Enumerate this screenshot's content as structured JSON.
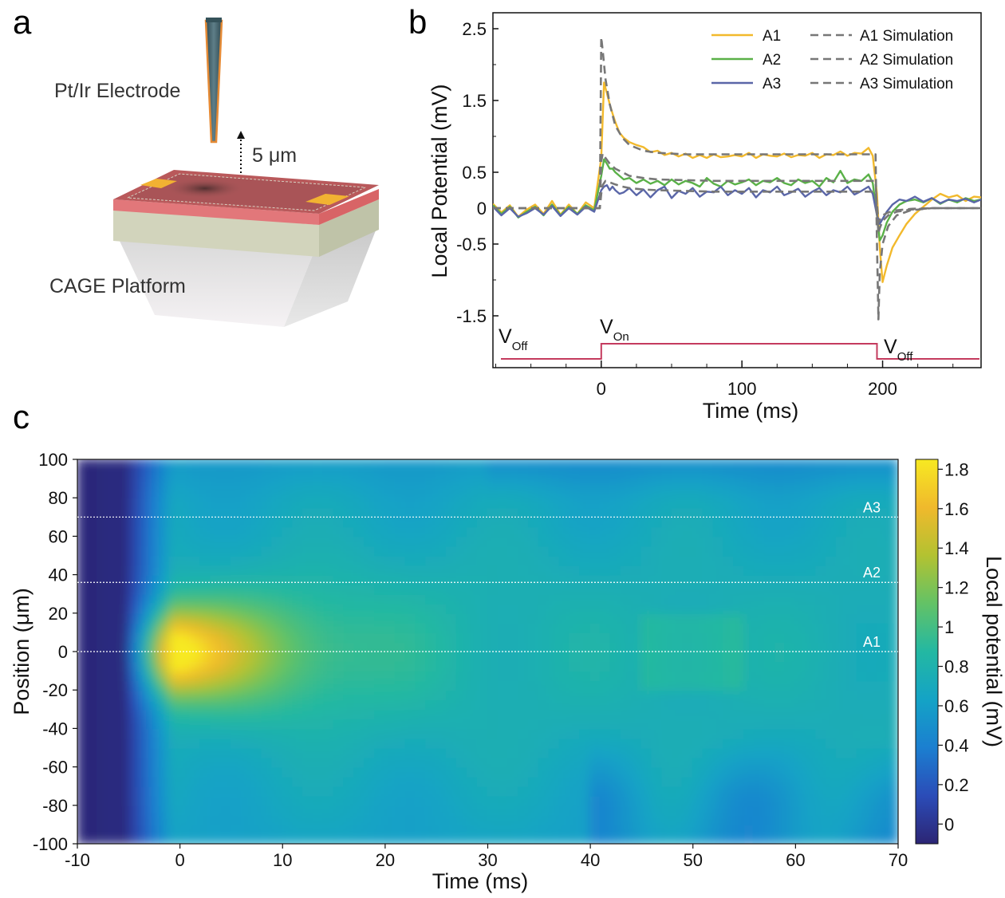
{
  "panels": {
    "a": {
      "letter": "a",
      "electrode_label": "Pt/Ir Electrode",
      "distance_label": "5 μm",
      "platform_label": "CAGE Platform",
      "colors": {
        "chip_top": "#b9595b",
        "chip_pink": "#e2777a",
        "chip_base": "#d2d4bc",
        "pad": "#f2b232",
        "electrode": "#3e5f68",
        "electrode_edge": "#e58a35"
      }
    },
    "b": {
      "letter": "b"
    },
    "c": {
      "letter": "c"
    }
  },
  "chart_data": [
    {
      "id": "panel-b",
      "type": "line",
      "xlabel": "Time (ms)",
      "ylabel": "Local Potential (mV)",
      "xlim": [
        -77,
        270
      ],
      "ylim": [
        -1.9,
        2.6
      ],
      "x_ticks": [
        0,
        100,
        200
      ],
      "x_minor_step": 25,
      "y_ticks": [
        {
          "value": 2.5,
          "label": "2.5"
        },
        {
          "value": 1.5,
          "label": "1.5"
        },
        {
          "value": 0.5,
          "label": "0.5"
        },
        {
          "value": 0,
          "label": "0"
        },
        {
          "value": -0.5,
          "label": "-0.5"
        },
        {
          "value": -1.5,
          "label": "-1.5"
        }
      ],
      "legend_position": "top-right",
      "series": [
        {
          "name": "A1",
          "color": "#f2b92c",
          "style": "solid",
          "x": [
            -77,
            -71,
            -65,
            -59,
            -53,
            -47,
            -41,
            -35,
            -29,
            -23,
            -17,
            -11,
            -5,
            0,
            2,
            4,
            6,
            8,
            10,
            13,
            16,
            20,
            25,
            30,
            35,
            40,
            45,
            50,
            55,
            60,
            65,
            70,
            75,
            80,
            85,
            90,
            95,
            100,
            105,
            110,
            115,
            120,
            125,
            130,
            135,
            140,
            145,
            150,
            155,
            160,
            165,
            170,
            175,
            180,
            185,
            190,
            193,
            196,
            198,
            200,
            203,
            207,
            212,
            217,
            223,
            229,
            235,
            241,
            247,
            253,
            259,
            265,
            270
          ],
          "y": [
            0.06,
            -0.06,
            0.04,
            -0.12,
            -0.02,
            0.05,
            -0.08,
            0.1,
            -0.09,
            0.05,
            -0.08,
            0.08,
            0.0,
            0.7,
            1.75,
            1.6,
            1.45,
            1.32,
            1.2,
            1.05,
            0.98,
            0.92,
            0.88,
            0.85,
            0.78,
            0.8,
            0.74,
            0.77,
            0.72,
            0.76,
            0.7,
            0.74,
            0.7,
            0.75,
            0.71,
            0.72,
            0.74,
            0.72,
            0.77,
            0.7,
            0.75,
            0.73,
            0.72,
            0.76,
            0.71,
            0.74,
            0.73,
            0.77,
            0.7,
            0.75,
            0.74,
            0.79,
            0.73,
            0.77,
            0.76,
            0.84,
            0.73,
            0.2,
            -0.55,
            -1.03,
            -0.8,
            -0.55,
            -0.38,
            -0.22,
            -0.08,
            0.02,
            0.12,
            0.2,
            0.15,
            0.18,
            0.1,
            0.16,
            0.15
          ]
        },
        {
          "name": "A2",
          "color": "#5ab148",
          "style": "solid",
          "x": [
            -77,
            -71,
            -65,
            -59,
            -53,
            -47,
            -41,
            -35,
            -29,
            -23,
            -17,
            -11,
            -5,
            0,
            2,
            4,
            6,
            8,
            10,
            13,
            16,
            20,
            25,
            30,
            35,
            40,
            45,
            50,
            55,
            60,
            65,
            70,
            75,
            80,
            85,
            90,
            95,
            100,
            105,
            110,
            115,
            120,
            125,
            130,
            135,
            140,
            145,
            150,
            155,
            160,
            165,
            170,
            175,
            180,
            185,
            190,
            193,
            196,
            198,
            200,
            203,
            207,
            212,
            217,
            223,
            229,
            235,
            241,
            247,
            253,
            259,
            265,
            270
          ],
          "y": [
            0.04,
            -0.08,
            0.02,
            -0.13,
            -0.05,
            0.02,
            -0.1,
            0.05,
            -0.1,
            0.02,
            -0.08,
            0.04,
            -0.03,
            0.45,
            0.68,
            0.62,
            0.55,
            0.55,
            0.5,
            0.45,
            0.4,
            0.42,
            0.35,
            0.4,
            0.34,
            0.38,
            0.32,
            0.4,
            0.33,
            0.38,
            0.35,
            0.3,
            0.42,
            0.34,
            0.3,
            0.38,
            0.33,
            0.36,
            0.4,
            0.32,
            0.38,
            0.36,
            0.42,
            0.35,
            0.32,
            0.4,
            0.35,
            0.38,
            0.3,
            0.42,
            0.36,
            0.52,
            0.35,
            0.4,
            0.38,
            0.47,
            0.35,
            -0.1,
            -0.45,
            -0.38,
            -0.2,
            -0.05,
            0.05,
            0.1,
            0.12,
            0.08,
            0.14,
            0.06,
            0.12,
            0.08,
            0.14,
            0.1,
            0.12
          ]
        },
        {
          "name": "A3",
          "color": "#5a66a8",
          "style": "solid",
          "x": [
            -77,
            -71,
            -65,
            -59,
            -53,
            -47,
            -41,
            -35,
            -29,
            -23,
            -17,
            -11,
            -5,
            0,
            2,
            4,
            6,
            8,
            10,
            13,
            16,
            20,
            25,
            30,
            35,
            40,
            45,
            50,
            55,
            60,
            65,
            70,
            75,
            80,
            85,
            90,
            95,
            100,
            105,
            110,
            115,
            120,
            125,
            130,
            135,
            140,
            145,
            150,
            155,
            160,
            165,
            170,
            175,
            180,
            185,
            190,
            193,
            196,
            198,
            200,
            203,
            207,
            212,
            217,
            223,
            229,
            235,
            241,
            247,
            253,
            259,
            265,
            270
          ],
          "y": [
            0.02,
            -0.1,
            0.0,
            -0.12,
            -0.07,
            0.0,
            -0.09,
            0.03,
            -0.11,
            0.0,
            -0.09,
            0.02,
            -0.05,
            0.25,
            0.3,
            0.32,
            0.25,
            0.3,
            0.25,
            0.2,
            0.22,
            0.28,
            0.18,
            0.26,
            0.15,
            0.25,
            0.3,
            0.14,
            0.24,
            0.2,
            0.28,
            0.16,
            0.23,
            0.22,
            0.3,
            0.18,
            0.25,
            0.2,
            0.28,
            0.15,
            0.25,
            0.22,
            0.3,
            0.18,
            0.22,
            0.27,
            0.16,
            0.23,
            0.28,
            0.18,
            0.25,
            0.22,
            0.3,
            0.19,
            0.24,
            0.3,
            0.2,
            -0.1,
            -0.22,
            -0.15,
            -0.05,
            0.05,
            0.12,
            0.1,
            0.16,
            0.09,
            0.14,
            0.07,
            0.12,
            0.1,
            0.13,
            0.08,
            0.12
          ]
        },
        {
          "name": "A1 Simulation",
          "color": "#777777",
          "style": "dashed",
          "x": [
            -77,
            -1,
            0,
            1,
            3,
            6,
            10,
            15,
            20,
            30,
            40,
            60,
            80,
            100,
            150,
            193,
            195,
            196,
            197,
            198,
            200,
            204,
            210,
            220,
            235,
            250,
            270
          ],
          "y": [
            0,
            0,
            2.38,
            2.2,
            1.8,
            1.45,
            1.15,
            0.98,
            0.88,
            0.8,
            0.77,
            0.75,
            0.75,
            0.75,
            0.75,
            0.75,
            0.75,
            -0.5,
            -1.55,
            -0.9,
            -0.5,
            -0.25,
            -0.1,
            -0.03,
            0,
            0,
            0
          ]
        },
        {
          "name": "A2 Simulation",
          "color": "#777777",
          "style": "dashed",
          "x": [
            -77,
            -1,
            0,
            1,
            3,
            6,
            10,
            15,
            20,
            30,
            40,
            60,
            80,
            100,
            150,
            193,
            195,
            196,
            197,
            198,
            200,
            204,
            210,
            220,
            235,
            250,
            270
          ],
          "y": [
            0,
            0,
            0.65,
            0.76,
            0.7,
            0.62,
            0.55,
            0.5,
            0.45,
            0.42,
            0.4,
            0.39,
            0.38,
            0.38,
            0.38,
            0.38,
            0.38,
            -0.05,
            -0.35,
            -0.28,
            -0.18,
            -0.1,
            -0.05,
            -0.02,
            0,
            0,
            0
          ]
        },
        {
          "name": "A3 Simulation",
          "color": "#777777",
          "style": "dashed",
          "x": [
            -77,
            -1,
            0,
            1,
            3,
            6,
            10,
            15,
            20,
            30,
            40,
            60,
            80,
            100,
            150,
            193,
            195,
            196,
            197,
            198,
            200,
            204,
            210,
            220,
            235,
            250,
            270
          ],
          "y": [
            0,
            0,
            0.2,
            0.32,
            0.38,
            0.36,
            0.33,
            0.3,
            0.28,
            0.26,
            0.25,
            0.24,
            0.23,
            0.23,
            0.23,
            0.23,
            0.23,
            0.05,
            -0.2,
            -0.16,
            -0.1,
            -0.06,
            -0.03,
            -0.01,
            0,
            0,
            0
          ]
        }
      ],
      "stimulus": {
        "color": "#c43b5e",
        "on_time": 0,
        "off_time": 196,
        "labels": [
          {
            "main": "V",
            "sub": "Off"
          },
          {
            "main": "V",
            "sub": "On"
          },
          {
            "main": "V",
            "sub": "Off"
          }
        ]
      }
    },
    {
      "id": "panel-c",
      "type": "heatmap",
      "xlabel": "Time (ms)",
      "ylabel": "Position (μm)",
      "colorbar_label": "Local potential (mV)",
      "xlim": [
        -10,
        70
      ],
      "ylim": [
        -100,
        100
      ],
      "zlim": [
        -0.1,
        1.85
      ],
      "x_ticks": [
        -10,
        0,
        10,
        20,
        30,
        40,
        50,
        60,
        70
      ],
      "y_ticks": [
        -100,
        -80,
        -60,
        -40,
        -20,
        0,
        20,
        40,
        60,
        80,
        100
      ],
      "colorbar_ticks": [
        {
          "value": 0,
          "label": "0"
        },
        {
          "value": 0.2,
          "label": "0.2"
        },
        {
          "value": 0.4,
          "label": "0.4"
        },
        {
          "value": 0.6,
          "label": "0.6"
        },
        {
          "value": 0.8,
          "label": "0.8"
        },
        {
          "value": 1,
          "label": "1"
        },
        {
          "value": 1.2,
          "label": "1.2"
        },
        {
          "value": 1.4,
          "label": "1.4"
        },
        {
          "value": 1.6,
          "label": "1.6"
        },
        {
          "value": 1.8,
          "label": "1.8"
        }
      ],
      "colormap": [
        "#2c2574",
        "#2b4cb8",
        "#1b7fd0",
        "#14a3c6",
        "#23b8a2",
        "#63c266",
        "#b3c231",
        "#f0b92c",
        "#f7e922"
      ],
      "reference_lines": [
        {
          "label": "A3",
          "y": 70
        },
        {
          "label": "A2",
          "y": 36
        },
        {
          "label": "A1",
          "y": 0
        }
      ]
    }
  ]
}
